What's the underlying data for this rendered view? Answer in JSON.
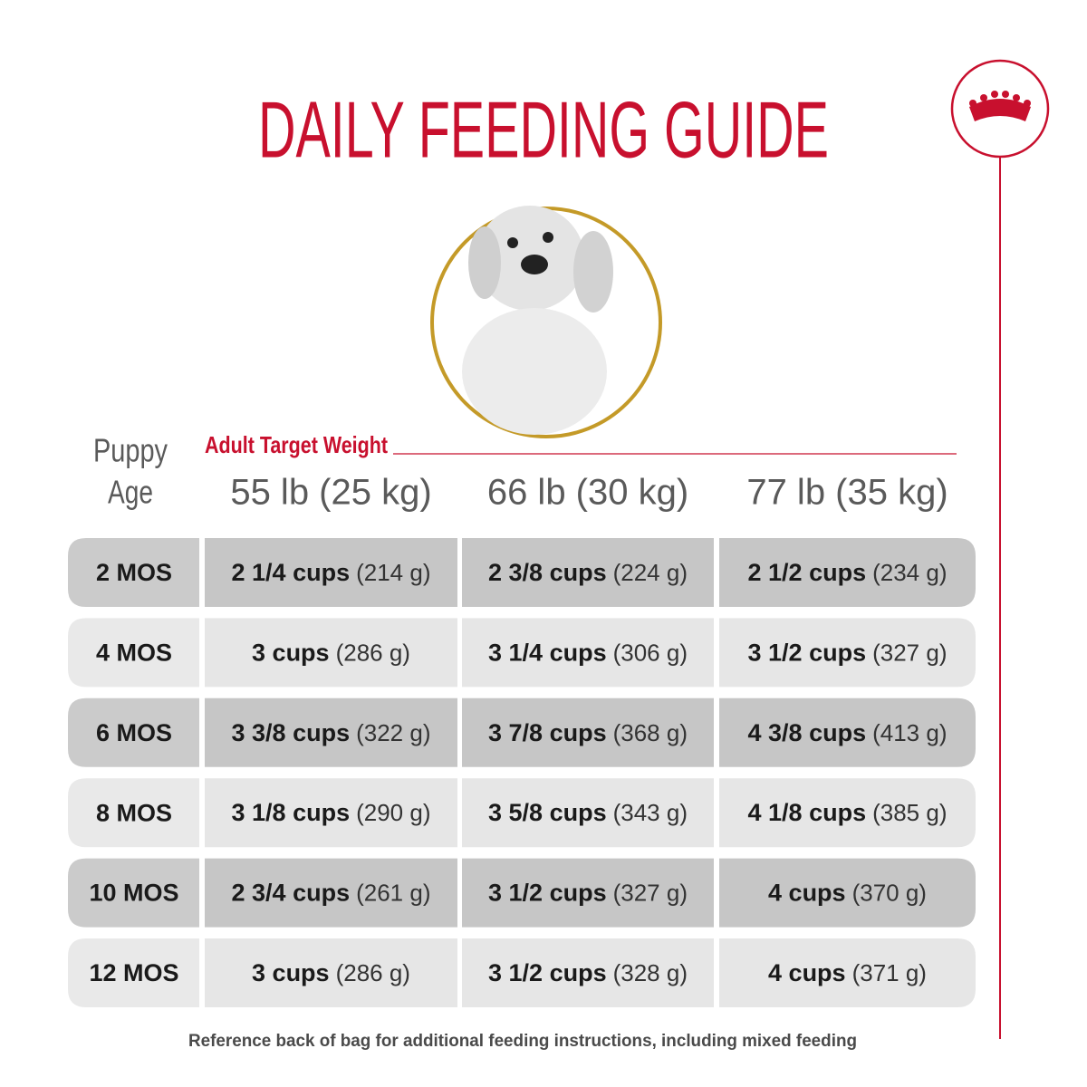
{
  "header": {
    "title": "DAILY FEEDING GUIDE"
  },
  "table": {
    "age_header": [
      "Puppy",
      "Age"
    ],
    "weight_caption": "Adult Target Weight",
    "columns": [
      "55 lb (25 kg)",
      "66 lb (30 kg)",
      "77 lb (35 kg)"
    ],
    "rows": [
      {
        "age": "2 MOS",
        "cells": [
          {
            "cups": "2 1/4 cups",
            "grams": "(214 g)"
          },
          {
            "cups": "2 3/8 cups",
            "grams": "(224 g)"
          },
          {
            "cups": "2 1/2 cups",
            "grams": "(234 g)"
          }
        ]
      },
      {
        "age": "4 MOS",
        "cells": [
          {
            "cups": "3 cups",
            "grams": "(286 g)"
          },
          {
            "cups": "3 1/4 cups",
            "grams": "(306 g)"
          },
          {
            "cups": "3 1/2 cups",
            "grams": "(327 g)"
          }
        ]
      },
      {
        "age": "6 MOS",
        "cells": [
          {
            "cups": "3 3/8 cups",
            "grams": "(322 g)"
          },
          {
            "cups": "3 7/8 cups",
            "grams": "(368 g)"
          },
          {
            "cups": "4 3/8 cups",
            "grams": "(413 g)"
          }
        ]
      },
      {
        "age": "8 MOS",
        "cells": [
          {
            "cups": "3 1/8 cups",
            "grams": "(290 g)"
          },
          {
            "cups": "3 5/8 cups",
            "grams": "(343 g)"
          },
          {
            "cups": "4 1/8 cups",
            "grams": "(385 g)"
          }
        ]
      },
      {
        "age": "10 MOS",
        "cells": [
          {
            "cups": "2 3/4 cups",
            "grams": "(261 g)"
          },
          {
            "cups": "3 1/2 cups",
            "grams": "(327 g)"
          },
          {
            "cups": "4 cups",
            "grams": "(370 g)"
          }
        ]
      },
      {
        "age": "12 MOS",
        "cells": [
          {
            "cups": "3 cups",
            "grams": "(286 g)"
          },
          {
            "cups": "3 1/2 cups",
            "grams": "(328 g)"
          },
          {
            "cups": "4 cups",
            "grams": "(371 g)"
          }
        ]
      }
    ]
  },
  "footer": {
    "note": "Reference back of bag for additional feeding instructions, including mixed feeding"
  }
}
